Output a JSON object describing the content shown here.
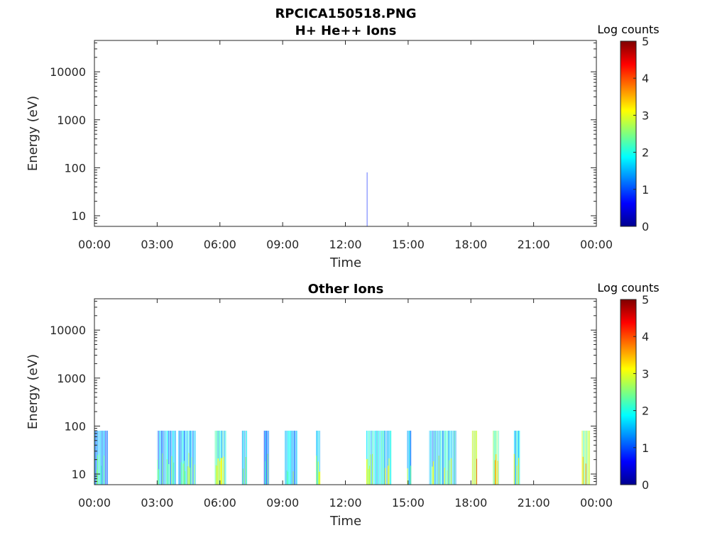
{
  "figure_title": "RPCICA150518.PNG",
  "colormap": [
    "#00008f",
    "#0000ff",
    "#007fff",
    "#00ffff",
    "#7fff7f",
    "#ffff00",
    "#ff7f00",
    "#ff0000",
    "#7f0000"
  ],
  "chart_data": [
    {
      "type": "heatmap",
      "title": "H+ He++ Ions",
      "xlabel": "Time",
      "ylabel": "Energy (eV)",
      "x_ticks": [
        "00:00",
        "03:00",
        "06:00",
        "09:00",
        "12:00",
        "15:00",
        "18:00",
        "21:00",
        "00:00"
      ],
      "xlim_hours": [
        0,
        24
      ],
      "y_scale": "log",
      "ylim": [
        6,
        45000
      ],
      "y_ticks": [
        {
          "value": 10,
          "label": "10"
        },
        {
          "value": 100,
          "label": "100"
        },
        {
          "value": 1000,
          "label": "1000"
        },
        {
          "value": 10000,
          "label": "10000"
        }
      ],
      "colorbar": {
        "label": "Log counts",
        "range": [
          0,
          5
        ],
        "ticks": [
          "0",
          "1",
          "2",
          "3",
          "4",
          "5"
        ]
      },
      "energy_max_of_data": 80,
      "activity_intervals": [
        {
          "start": 13.02,
          "end": 13.06,
          "log_counts": 0.6
        }
      ]
    },
    {
      "type": "heatmap",
      "title": "Other Ions",
      "xlabel": "Time",
      "ylabel": "Energy (eV)",
      "x_ticks": [
        "00:00",
        "03:00",
        "06:00",
        "09:00",
        "12:00",
        "15:00",
        "18:00",
        "21:00",
        "00:00"
      ],
      "xlim_hours": [
        0,
        24
      ],
      "y_scale": "log",
      "ylim": [
        6,
        45000
      ],
      "y_ticks": [
        {
          "value": 10,
          "label": "10"
        },
        {
          "value": 100,
          "label": "100"
        },
        {
          "value": 1000,
          "label": "1000"
        },
        {
          "value": 10000,
          "label": "10000"
        }
      ],
      "colorbar": {
        "label": "Log counts",
        "range": [
          0,
          5
        ],
        "ticks": [
          "0",
          "1",
          "2",
          "3",
          "4",
          "5"
        ]
      },
      "energy_max_of_data": 80,
      "activity_intervals": [
        {
          "start": 0.0,
          "end": 0.65,
          "log_counts": 1.2
        },
        {
          "start": 3.0,
          "end": 3.9,
          "log_counts": 1.4
        },
        {
          "start": 4.0,
          "end": 4.85,
          "log_counts": 1.5
        },
        {
          "start": 5.75,
          "end": 6.3,
          "log_counts": 1.8
        },
        {
          "start": 7.05,
          "end": 7.3,
          "log_counts": 1.7
        },
        {
          "start": 8.1,
          "end": 8.35,
          "log_counts": 1.3
        },
        {
          "start": 9.1,
          "end": 9.7,
          "log_counts": 1.4
        },
        {
          "start": 10.6,
          "end": 10.8,
          "log_counts": 1.8
        },
        {
          "start": 13.0,
          "end": 14.2,
          "log_counts": 1.8
        },
        {
          "start": 14.95,
          "end": 15.15,
          "log_counts": 1.6
        },
        {
          "start": 16.0,
          "end": 17.3,
          "log_counts": 1.7
        },
        {
          "start": 18.05,
          "end": 18.3,
          "log_counts": 2.8
        },
        {
          "start": 19.05,
          "end": 19.35,
          "log_counts": 2.2
        },
        {
          "start": 20.05,
          "end": 20.35,
          "log_counts": 1.9
        },
        {
          "start": 23.3,
          "end": 23.7,
          "log_counts": 2.5
        }
      ]
    }
  ]
}
